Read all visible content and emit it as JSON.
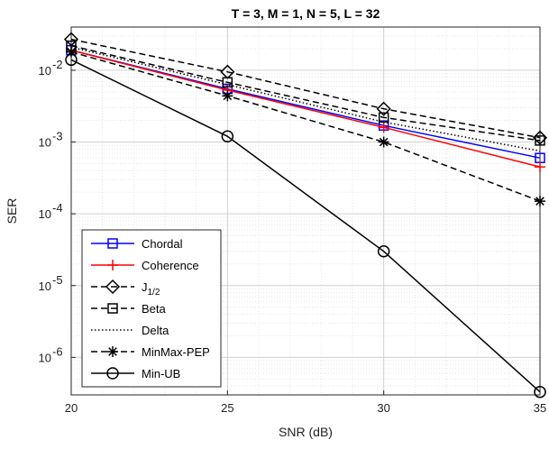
{
  "chart_data": {
    "type": "line",
    "title": "T = 3, M = 1, N = 5, L = 32",
    "xlabel": "SNR (dB)",
    "ylabel": "SER",
    "x": [
      20,
      25,
      30,
      35
    ],
    "xlim": [
      20,
      35
    ],
    "ylim": [
      3e-07,
      0.04
    ],
    "yscale": "log",
    "xticks": [
      20,
      25,
      30,
      35
    ],
    "yticks": [
      {
        "mantissa": "10",
        "exp": "-6",
        "value": 1e-06
      },
      {
        "mantissa": "10",
        "exp": "-5",
        "value": 1e-05
      },
      {
        "mantissa": "10",
        "exp": "-4",
        "value": 0.0001
      },
      {
        "mantissa": "10",
        "exp": "-3",
        "value": 0.001
      },
      {
        "mantissa": "10",
        "exp": "-2",
        "value": 0.01
      }
    ],
    "grid": true,
    "legend_position": "bottom-left",
    "series": [
      {
        "name": "Chordal",
        "color": "#0000ff",
        "dash": "solid",
        "marker": "square",
        "values": [
          0.019,
          0.0055,
          0.0017,
          0.0006
        ]
      },
      {
        "name": "Coherence",
        "color": "#ff0000",
        "dash": "solid",
        "marker": "plus",
        "values": [
          0.019,
          0.0053,
          0.0016,
          0.00045
        ]
      },
      {
        "name": "J",
        "name_sub": "1/2",
        "color": "#000000",
        "dash": "dashed",
        "marker": "diamond",
        "values": [
          0.027,
          0.0095,
          0.0029,
          0.00115
        ]
      },
      {
        "name": "Beta",
        "color": "#000000",
        "dash": "dashed",
        "marker": "square",
        "values": [
          0.022,
          0.0068,
          0.0022,
          0.00105
        ]
      },
      {
        "name": "Delta",
        "color": "#000000",
        "dash": "dotted",
        "marker": "none",
        "values": [
          0.021,
          0.0063,
          0.0019,
          0.00075
        ]
      },
      {
        "name": "MinMax-PEP",
        "color": "#000000",
        "dash": "dashed",
        "marker": "asterisk",
        "values": [
          0.018,
          0.0044,
          0.001,
          0.00015
        ]
      },
      {
        "name": "Min-UB",
        "color": "#000000",
        "dash": "solid",
        "marker": "circle",
        "values": [
          0.014,
          0.0012,
          3e-05,
          3.3e-07
        ]
      }
    ]
  }
}
